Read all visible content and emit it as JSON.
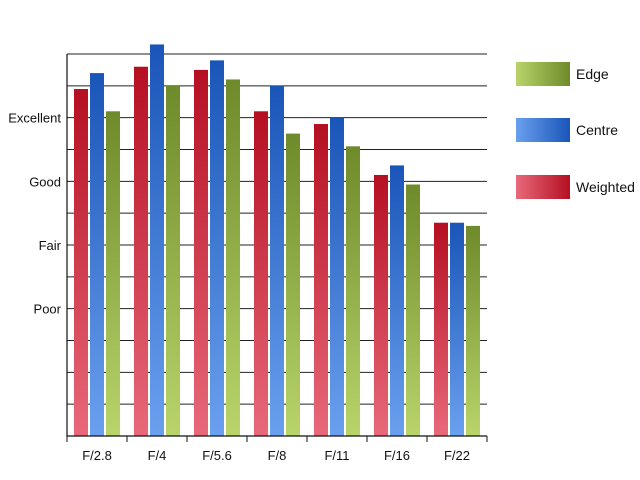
{
  "chart_data": {
    "type": "bar",
    "categories": [
      "F/2.8",
      "F/4",
      "F/5.6",
      "F/8",
      "F/11",
      "F/16",
      "F/22"
    ],
    "y_ticks": [
      {
        "value": 1,
        "label": "Poor"
      },
      {
        "value": 2,
        "label": "Fair"
      },
      {
        "value": 3,
        "label": "Good"
      },
      {
        "value": 4,
        "label": "Excellent"
      }
    ],
    "ylim": [
      -1,
      5
    ],
    "grid": true,
    "legend_position": "right",
    "series": [
      {
        "name": "Weighted",
        "values": [
          4.45,
          4.8,
          4.75,
          4.1,
          3.9,
          3.1,
          2.35
        ],
        "colors": [
          "#e8697a",
          "#b50f22"
        ]
      },
      {
        "name": "Centre",
        "values": [
          4.7,
          5.15,
          4.9,
          4.5,
          4.0,
          3.25,
          2.35
        ],
        "colors": [
          "#6aa0ee",
          "#1a55b8"
        ]
      },
      {
        "name": "Edge",
        "values": [
          4.1,
          4.5,
          4.6,
          3.75,
          3.55,
          2.95,
          2.3
        ],
        "colors": [
          "#b8d46a",
          "#6e8a2a"
        ]
      }
    ],
    "legend_order": [
      "Edge",
      "Centre",
      "Weighted"
    ]
  }
}
